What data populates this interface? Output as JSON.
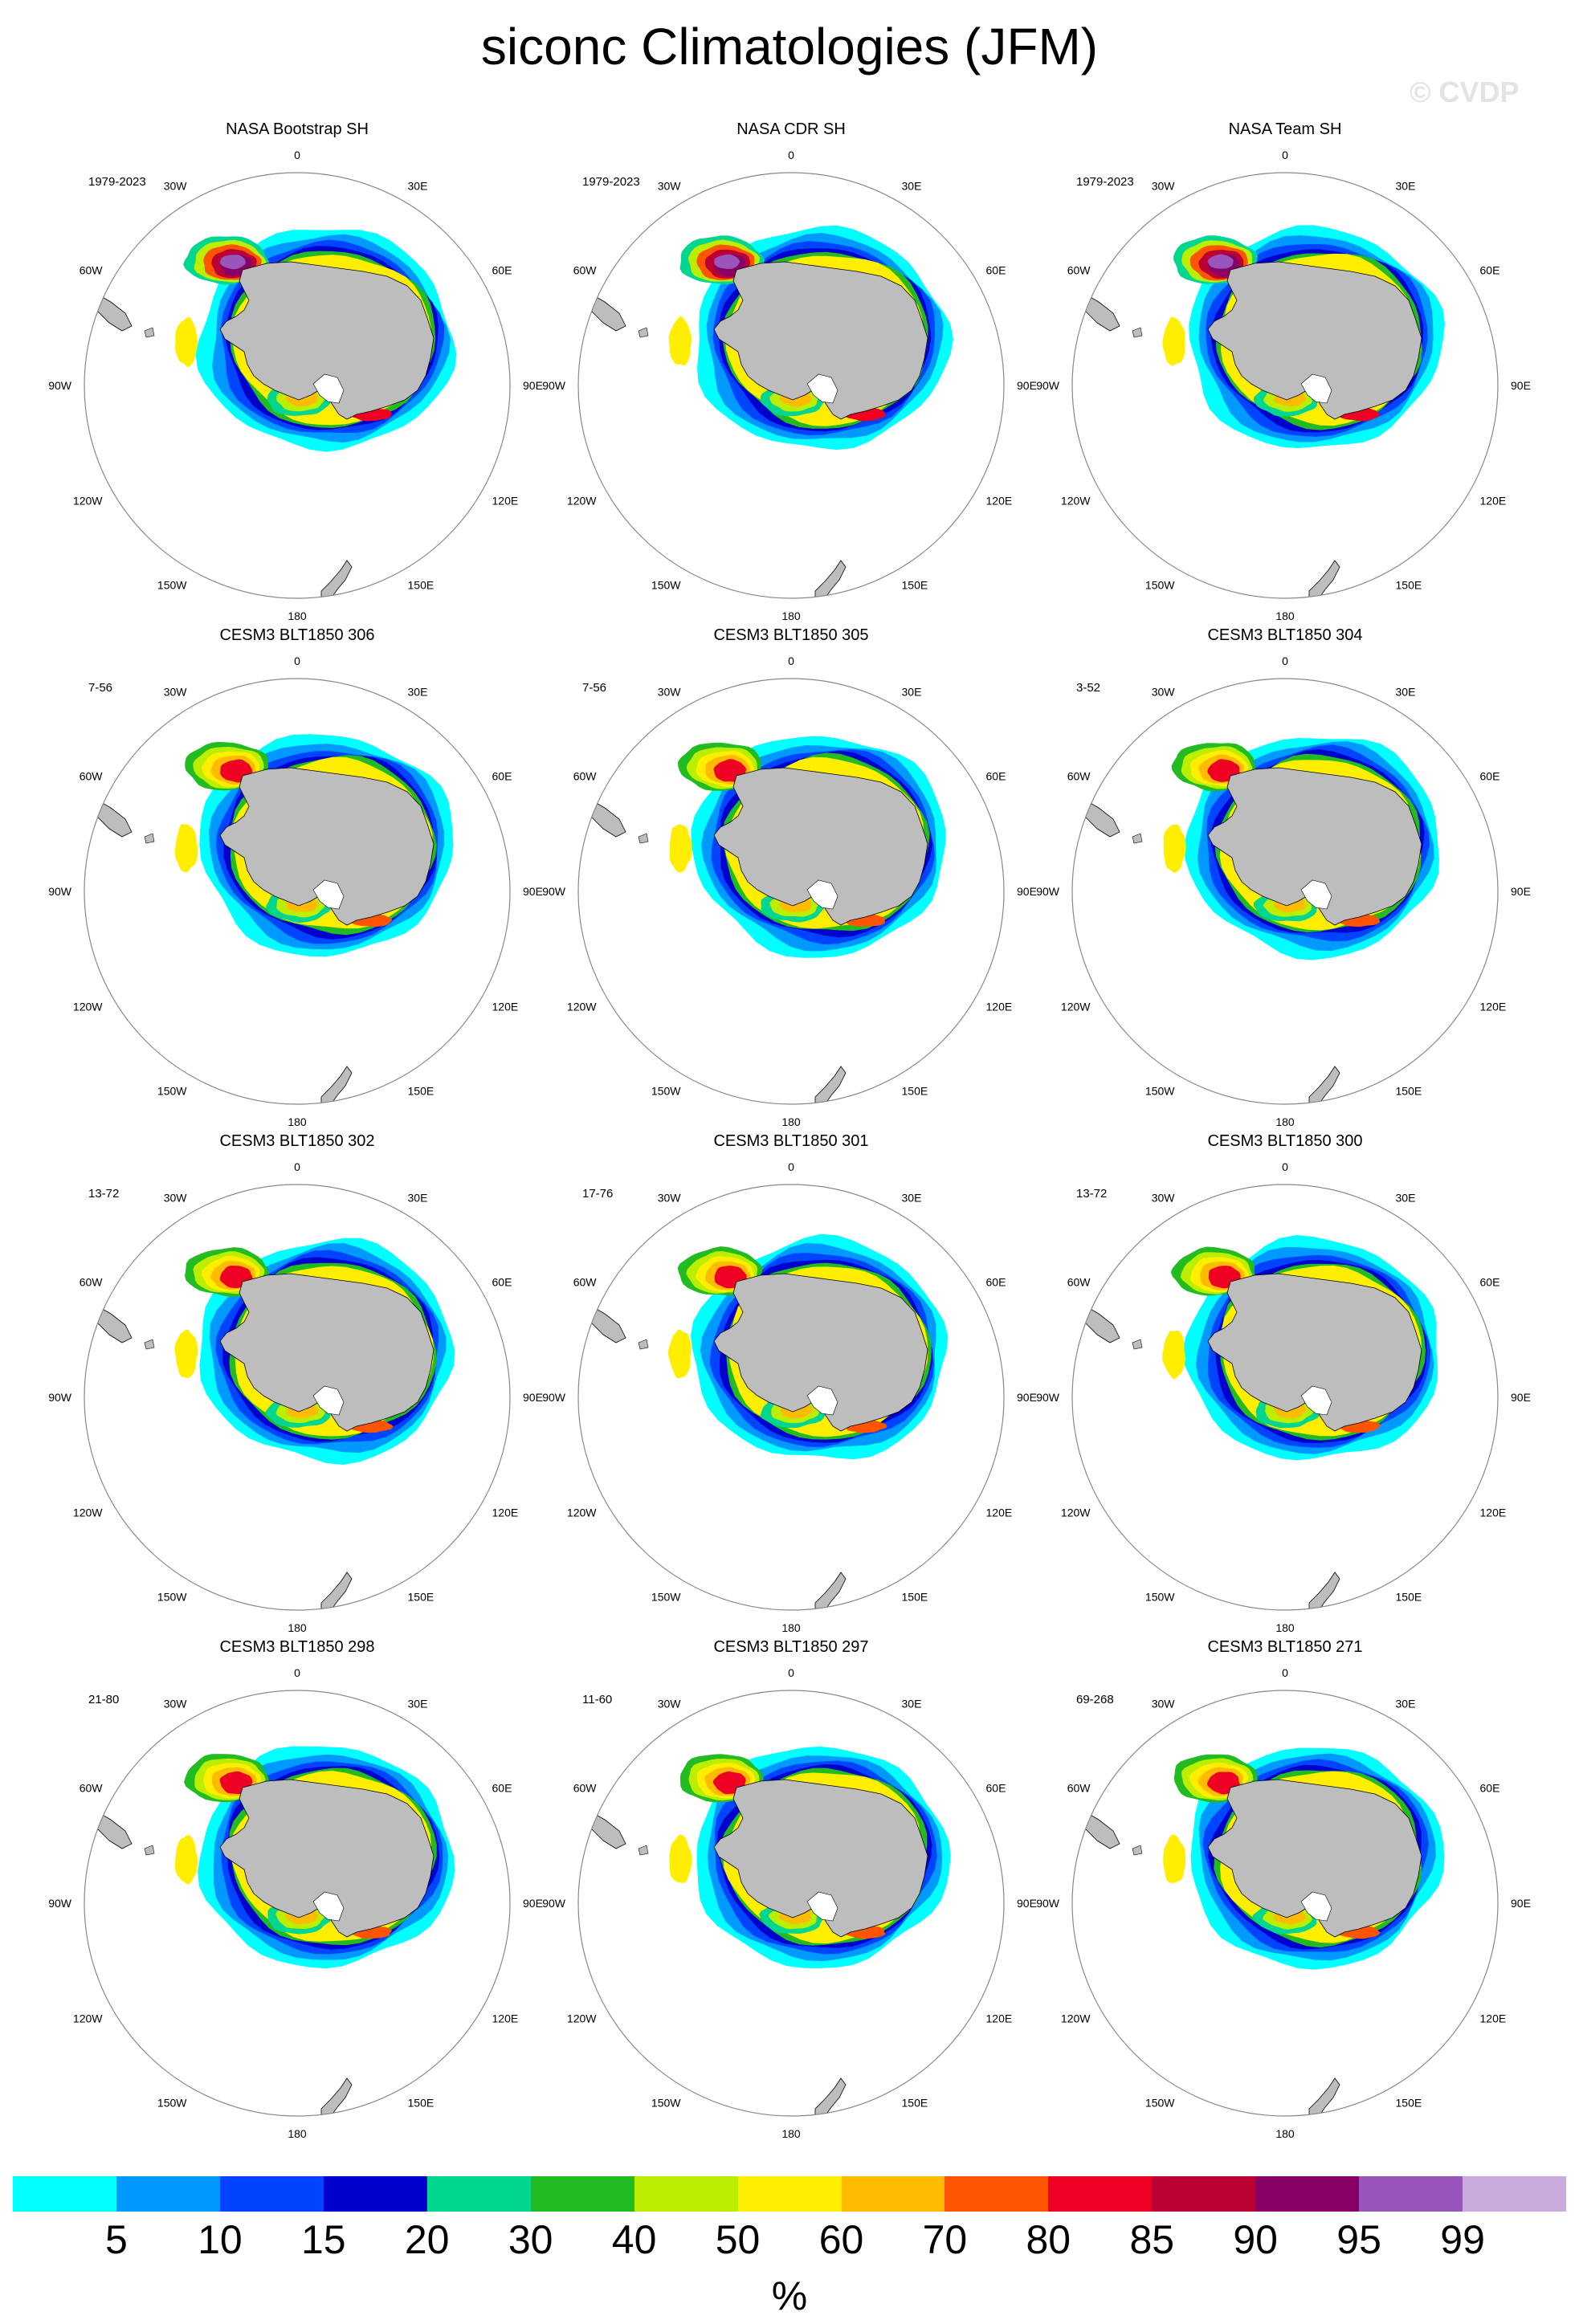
{
  "title": "siconc Climatologies (JFM)",
  "watermark": "© CVDP",
  "longitude_labels": [
    "0",
    "30E",
    "60E",
    "90E",
    "120E",
    "150E",
    "180",
    "150W",
    "120W",
    "90W",
    "60W",
    "30W"
  ],
  "colors": {
    "land": "#bdbdbd",
    "ocean": "#ffffff",
    "coastline": "#000000",
    "frame": "#888888"
  },
  "panels": [
    {
      "title": "NASA Bootstrap SH",
      "years": "1979-2023",
      "style": "obs-bootstrap"
    },
    {
      "title": "NASA CDR SH",
      "years": "1979-2023",
      "style": "obs-cdr"
    },
    {
      "title": "NASA Team SH",
      "years": "1979-2023",
      "style": "obs-team"
    },
    {
      "title": "CESM3 BLT1850 306",
      "years": "7-56",
      "style": "model"
    },
    {
      "title": "CESM3 BLT1850 305",
      "years": "7-56",
      "style": "model"
    },
    {
      "title": "CESM3 BLT1850 304",
      "years": "3-52",
      "style": "model"
    },
    {
      "title": "CESM3 BLT1850 302",
      "years": "13-72",
      "style": "model"
    },
    {
      "title": "CESM3 BLT1850 301",
      "years": "17-76",
      "style": "model"
    },
    {
      "title": "CESM3 BLT1850 300",
      "years": "13-72",
      "style": "model"
    },
    {
      "title": "CESM3 BLT1850 298",
      "years": "21-80",
      "style": "model"
    },
    {
      "title": "CESM3 BLT1850 297",
      "years": "11-60",
      "style": "model"
    },
    {
      "title": "CESM3 BLT1850 271",
      "years": "69-268",
      "style": "model"
    }
  ],
  "colorbar": {
    "colors": [
      "#00ffff",
      "#0099ff",
      "#0044ff",
      "#0000cc",
      "#00d68f",
      "#22bb22",
      "#bbee00",
      "#ffee00",
      "#ffbb00",
      "#ff5500",
      "#ee0022",
      "#bb0033",
      "#880066",
      "#9955bb",
      "#c8aadd"
    ],
    "ticks": [
      "5",
      "10",
      "15",
      "20",
      "30",
      "40",
      "50",
      "60",
      "70",
      "80",
      "85",
      "90",
      "95",
      "99"
    ],
    "unit": "%"
  }
}
